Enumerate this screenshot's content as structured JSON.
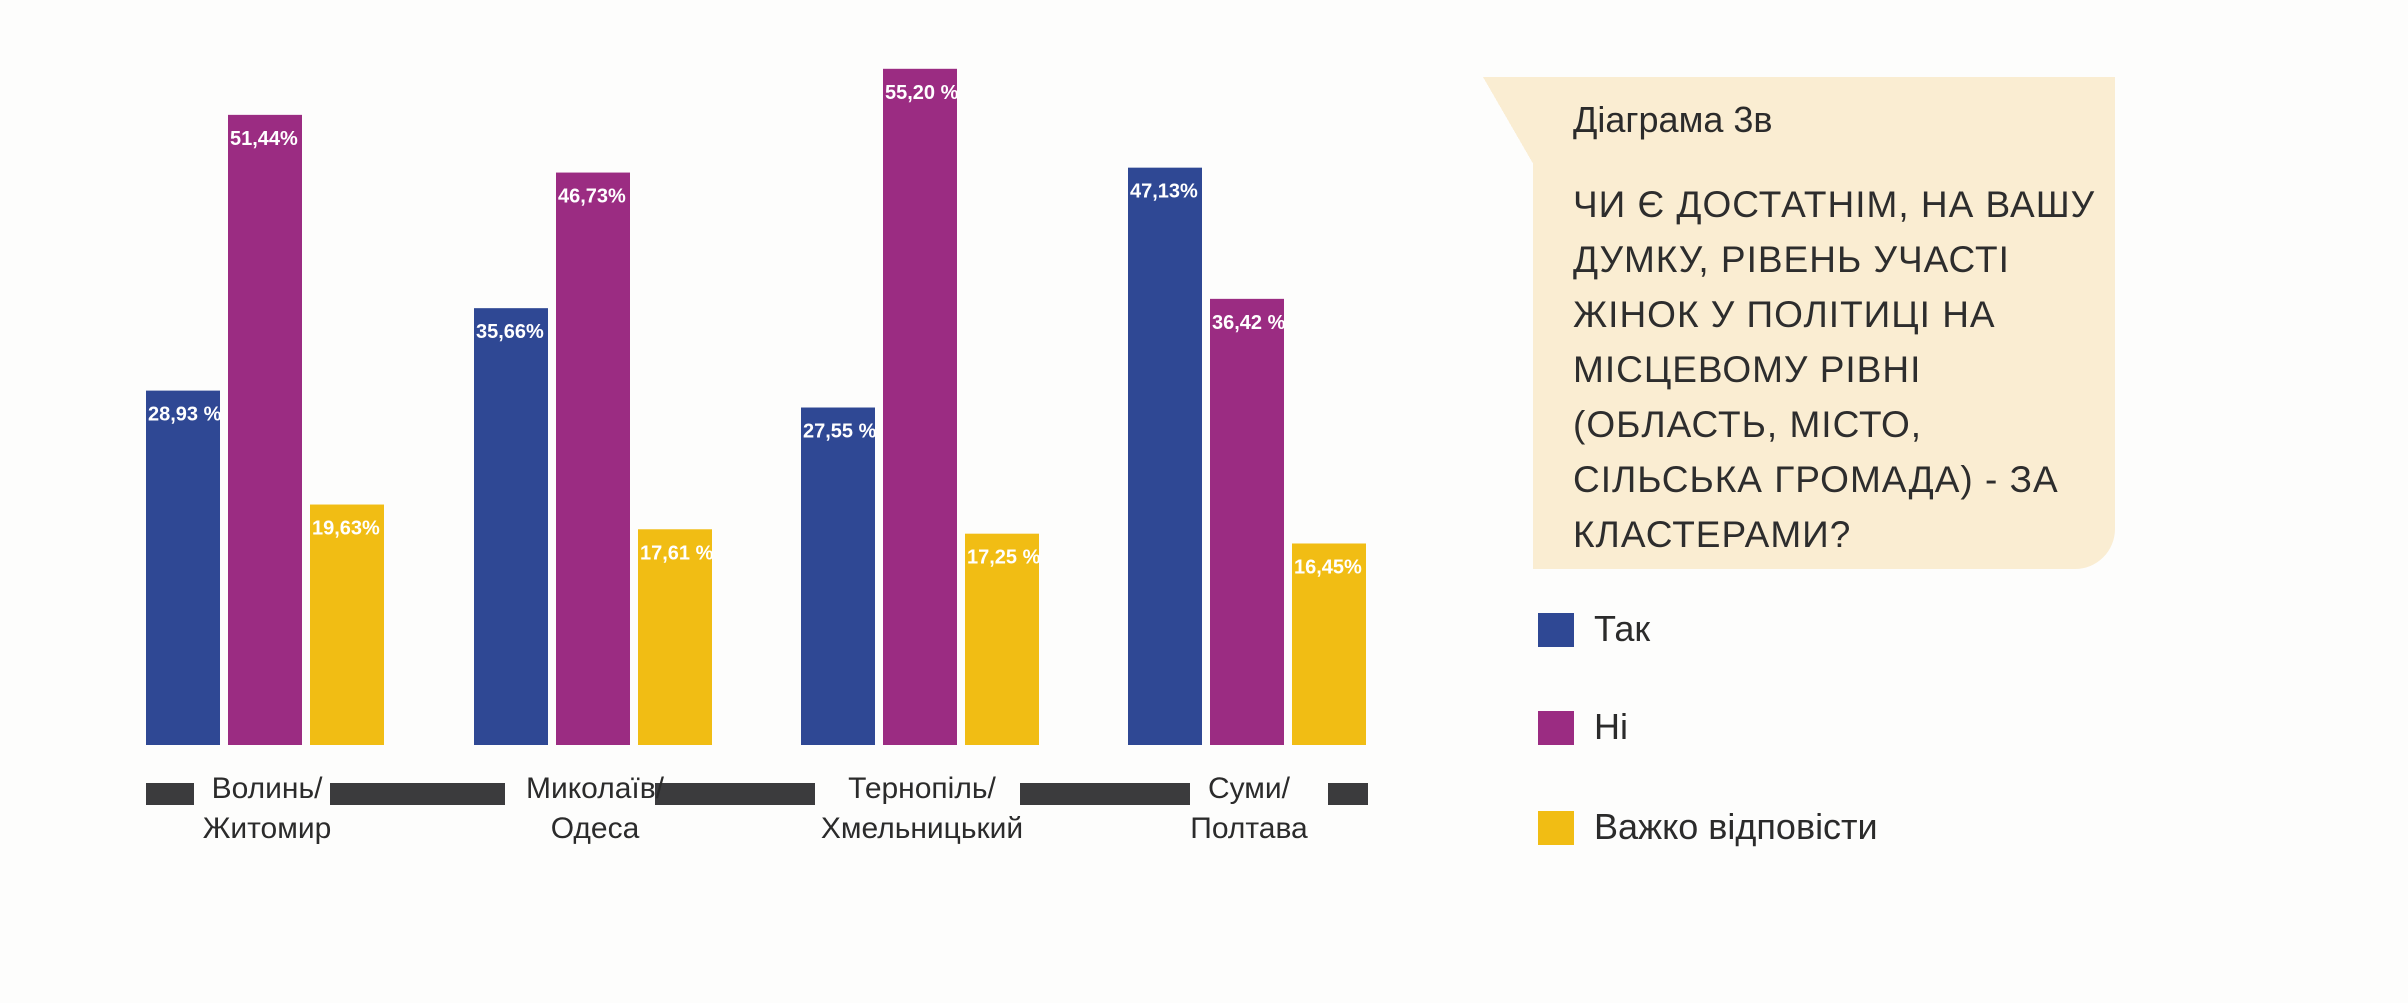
{
  "chart_data": {
    "type": "bar",
    "categories": [
      [
        "Волинь/",
        "Житомир"
      ],
      [
        "Миколаїв/",
        "Одеса"
      ],
      [
        "Тернопіль/",
        "Хмельницький"
      ],
      [
        "Суми/",
        "Полтава"
      ]
    ],
    "series": [
      {
        "name": "Так",
        "color": "#2f4894",
        "values": [
          28.93,
          35.66,
          27.55,
          47.13
        ],
        "labels": [
          "28,93 %",
          "35,66%",
          "27,55 %",
          "47,13%"
        ]
      },
      {
        "name": "Ні",
        "color": "#9b2c82",
        "values": [
          51.44,
          46.73,
          55.2,
          36.42
        ],
        "labels": [
          "51,44%",
          "46,73%",
          "55,20 %",
          "36,42 %"
        ]
      },
      {
        "name": "Важко відповісти",
        "color": "#f1bd14",
        "values": [
          19.63,
          17.61,
          17.25,
          16.45
        ],
        "labels": [
          "19,63%",
          "17,61 %",
          "17,25 %",
          "16,45%"
        ]
      }
    ],
    "ylim": [
      0,
      55.2
    ],
    "grid": false,
    "legend_position": "right"
  },
  "callout": {
    "tag": "Діаграма 3в",
    "question": "ЧИ Є ДОСТАТНІМ, НА ВАШУ ДУМКУ, РІВЕНЬ УЧАСТІ ЖІНОК У ПОЛІТИЦІ НА МІСЦЕВОМУ РІВНІ (ОБЛАСТЬ, МІСТО, СІЛЬСЬКА ГРОМАДА) - ЗА КЛАСТЕРАМИ?"
  }
}
